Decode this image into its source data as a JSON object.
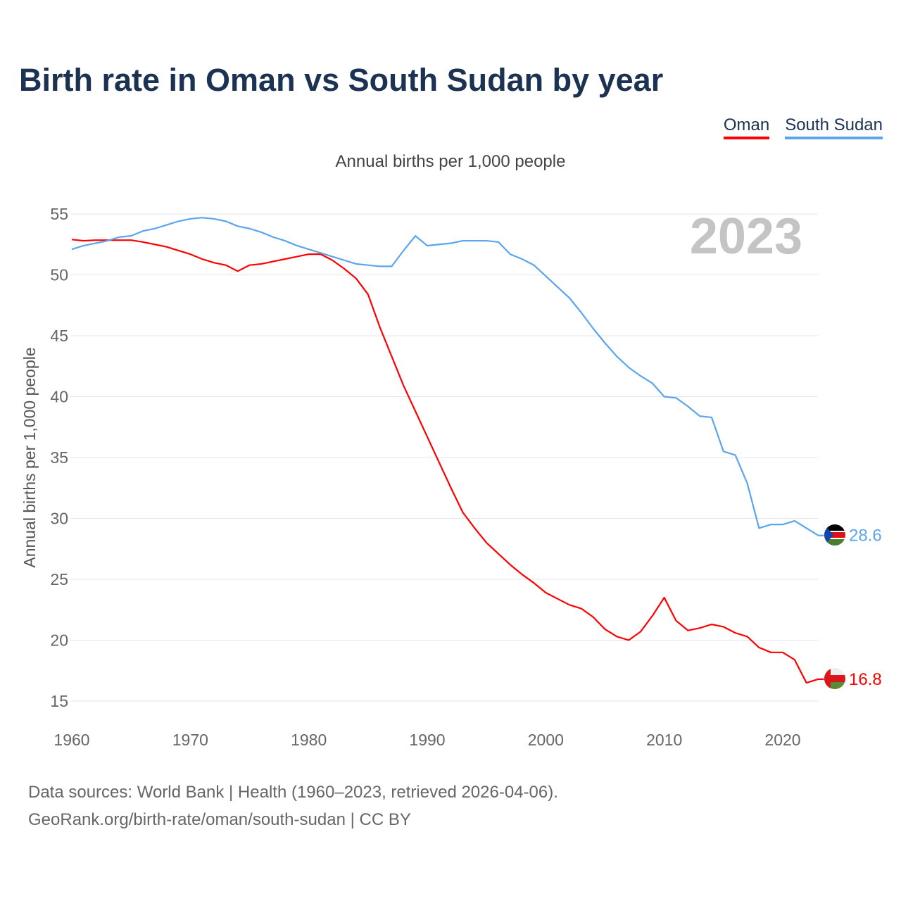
{
  "title": "Birth rate in Oman vs South Sudan by year",
  "legend": [
    {
      "label": "Oman",
      "color": "#ff0000"
    },
    {
      "label": "South Sudan",
      "color": "#5ba4ee"
    }
  ],
  "footer": {
    "line1": "Data sources: World Bank | Health (1960–2023, retrieved 2026-04-06).",
    "line2": "GeoRank.org/birth-rate/oman/south-sudan | CC BY"
  },
  "chart_data": {
    "type": "line",
    "title": "Birth rate in Oman vs South Sudan by year",
    "subtitle": "Annual births per 1,000 people",
    "xlabel": "",
    "ylabel": "Annual births per 1,000 people",
    "year_label": "2023",
    "xlim": [
      1960,
      2023
    ],
    "ylim": [
      15,
      55
    ],
    "xticks": [
      1960,
      1970,
      1980,
      1990,
      2000,
      2010,
      2020
    ],
    "yticks": [
      15,
      20,
      25,
      30,
      35,
      40,
      45,
      50,
      55
    ],
    "grid": true,
    "legend_position": "top-right",
    "x": [
      1960,
      1961,
      1962,
      1963,
      1964,
      1965,
      1966,
      1967,
      1968,
      1969,
      1970,
      1971,
      1972,
      1973,
      1974,
      1975,
      1976,
      1977,
      1978,
      1979,
      1980,
      1981,
      1982,
      1983,
      1984,
      1985,
      1986,
      1987,
      1988,
      1989,
      1990,
      1991,
      1992,
      1993,
      1994,
      1995,
      1996,
      1997,
      1998,
      1999,
      2000,
      2001,
      2002,
      2003,
      2004,
      2005,
      2006,
      2007,
      2008,
      2009,
      2010,
      2011,
      2012,
      2013,
      2014,
      2015,
      2016,
      2017,
      2018,
      2019,
      2020,
      2021,
      2022,
      2023
    ],
    "series": [
      {
        "name": "Oman",
        "color": "#ff0000",
        "end_label": "16.8",
        "values": [
          52.9,
          52.8,
          52.85,
          52.85,
          52.85,
          52.85,
          52.7,
          52.5,
          52.3,
          52.0,
          51.7,
          51.3,
          51.0,
          50.8,
          50.3,
          50.8,
          50.9,
          51.1,
          51.3,
          51.5,
          51.7,
          51.7,
          51.2,
          50.5,
          49.7,
          48.4,
          45.7,
          43.3,
          40.9,
          38.8,
          36.7,
          34.6,
          32.5,
          30.5,
          29.2,
          28.0,
          27.1,
          26.2,
          25.4,
          24.7,
          23.9,
          23.4,
          22.9,
          22.6,
          21.9,
          20.9,
          20.3,
          20.0,
          20.7,
          22.0,
          23.5,
          21.6,
          20.8,
          21.0,
          21.3,
          21.1,
          20.6,
          20.3,
          19.4,
          19.0,
          19.0,
          18.4,
          16.5,
          16.8
        ]
      },
      {
        "name": "South Sudan",
        "color": "#5ba4ee",
        "end_label": "28.6",
        "values": [
          52.1,
          52.4,
          52.6,
          52.8,
          53.1,
          53.2,
          53.6,
          53.8,
          54.1,
          54.4,
          54.6,
          54.7,
          54.6,
          54.4,
          54.0,
          53.8,
          53.5,
          53.1,
          52.8,
          52.4,
          52.1,
          51.8,
          51.5,
          51.2,
          50.9,
          50.8,
          50.7,
          50.7,
          52.0,
          53.2,
          52.4,
          52.5,
          52.6,
          52.8,
          52.8,
          52.8,
          52.7,
          51.7,
          51.3,
          50.8,
          49.9,
          49.0,
          48.1,
          46.9,
          45.6,
          44.4,
          43.3,
          42.4,
          41.7,
          41.1,
          40.0,
          39.9,
          39.2,
          38.4,
          38.3,
          35.5,
          35.2,
          32.9,
          29.2,
          29.5,
          29.5,
          29.8,
          29.2,
          28.6
        ]
      }
    ]
  }
}
